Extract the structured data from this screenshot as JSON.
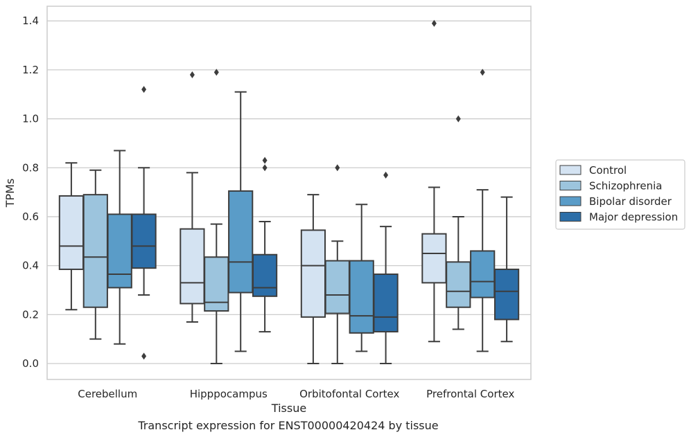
{
  "caption": "Transcript expression for ENST00000420424 by tissue",
  "chart_data": {
    "type": "boxplot",
    "xlabel": "Tissue",
    "ylabel": "TPMs",
    "ylim": [
      -0.065,
      1.46
    ],
    "yticks": [
      0.0,
      0.2,
      0.4,
      0.6,
      0.8,
      1.0,
      1.2,
      1.4
    ],
    "ytick_labels": [
      "0.0",
      "0.2",
      "0.4",
      "0.6",
      "0.8",
      "1.0",
      "1.2",
      "1.4"
    ],
    "grid": true,
    "legend_position": "right",
    "categories": [
      "Cerebellum",
      "Hipppocampus",
      "Orbitofontal Cortex",
      "Prefrontal Cortex"
    ],
    "series": [
      {
        "name": "Control",
        "color": "#d4e3f2",
        "boxes": [
          {
            "whislo": 0.22,
            "q1": 0.385,
            "med": 0.48,
            "q3": 0.685,
            "whishi": 0.82,
            "fliers": []
          },
          {
            "whislo": 0.17,
            "q1": 0.245,
            "med": 0.33,
            "q3": 0.55,
            "whishi": 0.78,
            "fliers": [
              1.18
            ]
          },
          {
            "whislo": 0.0,
            "q1": 0.19,
            "med": 0.4,
            "q3": 0.545,
            "whishi": 0.69,
            "fliers": []
          },
          {
            "whislo": 0.09,
            "q1": 0.33,
            "med": 0.45,
            "q3": 0.53,
            "whishi": 0.72,
            "fliers": [
              1.39
            ]
          }
        ]
      },
      {
        "name": "Schizophrenia",
        "color": "#9cc4dd",
        "boxes": [
          {
            "whislo": 0.1,
            "q1": 0.23,
            "med": 0.435,
            "q3": 0.69,
            "whishi": 0.79,
            "fliers": []
          },
          {
            "whislo": 0.0,
            "q1": 0.215,
            "med": 0.25,
            "q3": 0.435,
            "whishi": 0.57,
            "fliers": [
              1.19
            ]
          },
          {
            "whislo": 0.0,
            "q1": 0.205,
            "med": 0.28,
            "q3": 0.42,
            "whishi": 0.5,
            "fliers": [
              0.8
            ]
          },
          {
            "whislo": 0.14,
            "q1": 0.23,
            "med": 0.295,
            "q3": 0.415,
            "whishi": 0.6,
            "fliers": [
              1.0
            ]
          }
        ]
      },
      {
        "name": "Bipolar disorder",
        "color": "#5a9cc8",
        "boxes": [
          {
            "whislo": 0.08,
            "q1": 0.31,
            "med": 0.365,
            "q3": 0.61,
            "whishi": 0.87,
            "fliers": []
          },
          {
            "whislo": 0.05,
            "q1": 0.29,
            "med": 0.415,
            "q3": 0.705,
            "whishi": 1.11,
            "fliers": []
          },
          {
            "whislo": 0.05,
            "q1": 0.125,
            "med": 0.195,
            "q3": 0.42,
            "whishi": 0.65,
            "fliers": []
          },
          {
            "whislo": 0.05,
            "q1": 0.27,
            "med": 0.335,
            "q3": 0.46,
            "whishi": 0.71,
            "fliers": [
              1.19
            ]
          }
        ]
      },
      {
        "name": "Major depression",
        "color": "#2c6ea8",
        "boxes": [
          {
            "whislo": 0.28,
            "q1": 0.39,
            "med": 0.48,
            "q3": 0.61,
            "whishi": 0.8,
            "fliers": [
              1.12,
              0.03
            ]
          },
          {
            "whislo": 0.13,
            "q1": 0.275,
            "med": 0.31,
            "q3": 0.445,
            "whishi": 0.58,
            "fliers": [
              0.83,
              0.8
            ]
          },
          {
            "whislo": 0.0,
            "q1": 0.13,
            "med": 0.19,
            "q3": 0.365,
            "whishi": 0.56,
            "fliers": [
              0.77
            ]
          },
          {
            "whislo": 0.09,
            "q1": 0.18,
            "med": 0.295,
            "q3": 0.385,
            "whishi": 0.68,
            "fliers": []
          }
        ]
      }
    ]
  }
}
